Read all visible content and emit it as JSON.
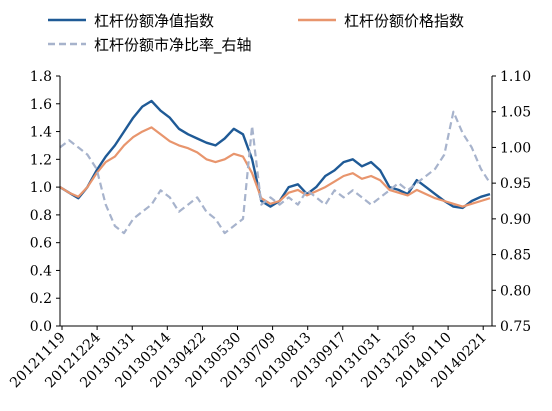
{
  "chart_data": {
    "type": "line",
    "x_tick_labels": [
      "20121119",
      "20121224",
      "20130131",
      "20130314",
      "20130422",
      "20130530",
      "20130709",
      "20130813",
      "20130917",
      "20131031",
      "20131205",
      "20140110",
      "20140221"
    ],
    "y_left": {
      "range": [
        0.0,
        1.8
      ],
      "ticks": [
        "0.0",
        "0.2",
        "0.4",
        "0.6",
        "0.8",
        "1.0",
        "1.2",
        "1.4",
        "1.6",
        "1.8"
      ]
    },
    "y_right": {
      "range": [
        0.75,
        1.1
      ],
      "ticks": [
        "0.75",
        "0.80",
        "0.85",
        "0.90",
        "0.95",
        "1.00",
        "1.05",
        "1.10"
      ]
    },
    "legend_position": "top",
    "series": [
      {
        "name": "杠杆份额净值指数",
        "axis": "left",
        "color": "#1F5A96",
        "dash": "solid",
        "values": [
          1.0,
          0.96,
          0.92,
          1.0,
          1.12,
          1.22,
          1.3,
          1.4,
          1.5,
          1.58,
          1.62,
          1.55,
          1.5,
          1.42,
          1.38,
          1.35,
          1.32,
          1.3,
          1.35,
          1.42,
          1.38,
          1.2,
          0.9,
          0.86,
          0.9,
          1.0,
          1.02,
          0.95,
          1.0,
          1.08,
          1.12,
          1.18,
          1.2,
          1.15,
          1.18,
          1.12,
          1.0,
          0.98,
          0.95,
          1.05,
          1.0,
          0.95,
          0.9,
          0.86,
          0.85,
          0.9,
          0.93,
          0.95
        ]
      },
      {
        "name": "杠杆份额价格指数",
        "axis": "left",
        "color": "#E8956D",
        "dash": "solid",
        "values": [
          1.0,
          0.96,
          0.93,
          1.0,
          1.1,
          1.18,
          1.22,
          1.3,
          1.36,
          1.4,
          1.43,
          1.38,
          1.33,
          1.3,
          1.28,
          1.25,
          1.2,
          1.18,
          1.2,
          1.24,
          1.22,
          1.1,
          0.92,
          0.88,
          0.9,
          0.96,
          0.98,
          0.94,
          0.97,
          1.0,
          1.04,
          1.08,
          1.1,
          1.06,
          1.08,
          1.05,
          0.98,
          0.96,
          0.94,
          0.98,
          0.95,
          0.92,
          0.9,
          0.88,
          0.86,
          0.88,
          0.9,
          0.92
        ]
      },
      {
        "name": "杠杆份额市净比率_右轴",
        "axis": "right",
        "color": "#A7B3CC",
        "dash": "dashed",
        "values": [
          1.0,
          1.01,
          1.0,
          0.99,
          0.97,
          0.92,
          0.89,
          0.88,
          0.9,
          0.91,
          0.92,
          0.94,
          0.93,
          0.91,
          0.92,
          0.93,
          0.91,
          0.9,
          0.88,
          0.89,
          0.9,
          1.03,
          0.92,
          0.93,
          0.92,
          0.93,
          0.92,
          0.94,
          0.93,
          0.92,
          0.94,
          0.93,
          0.94,
          0.93,
          0.92,
          0.93,
          0.94,
          0.95,
          0.94,
          0.95,
          0.96,
          0.97,
          0.99,
          1.05,
          1.02,
          1.0,
          0.97,
          0.95
        ]
      }
    ]
  }
}
